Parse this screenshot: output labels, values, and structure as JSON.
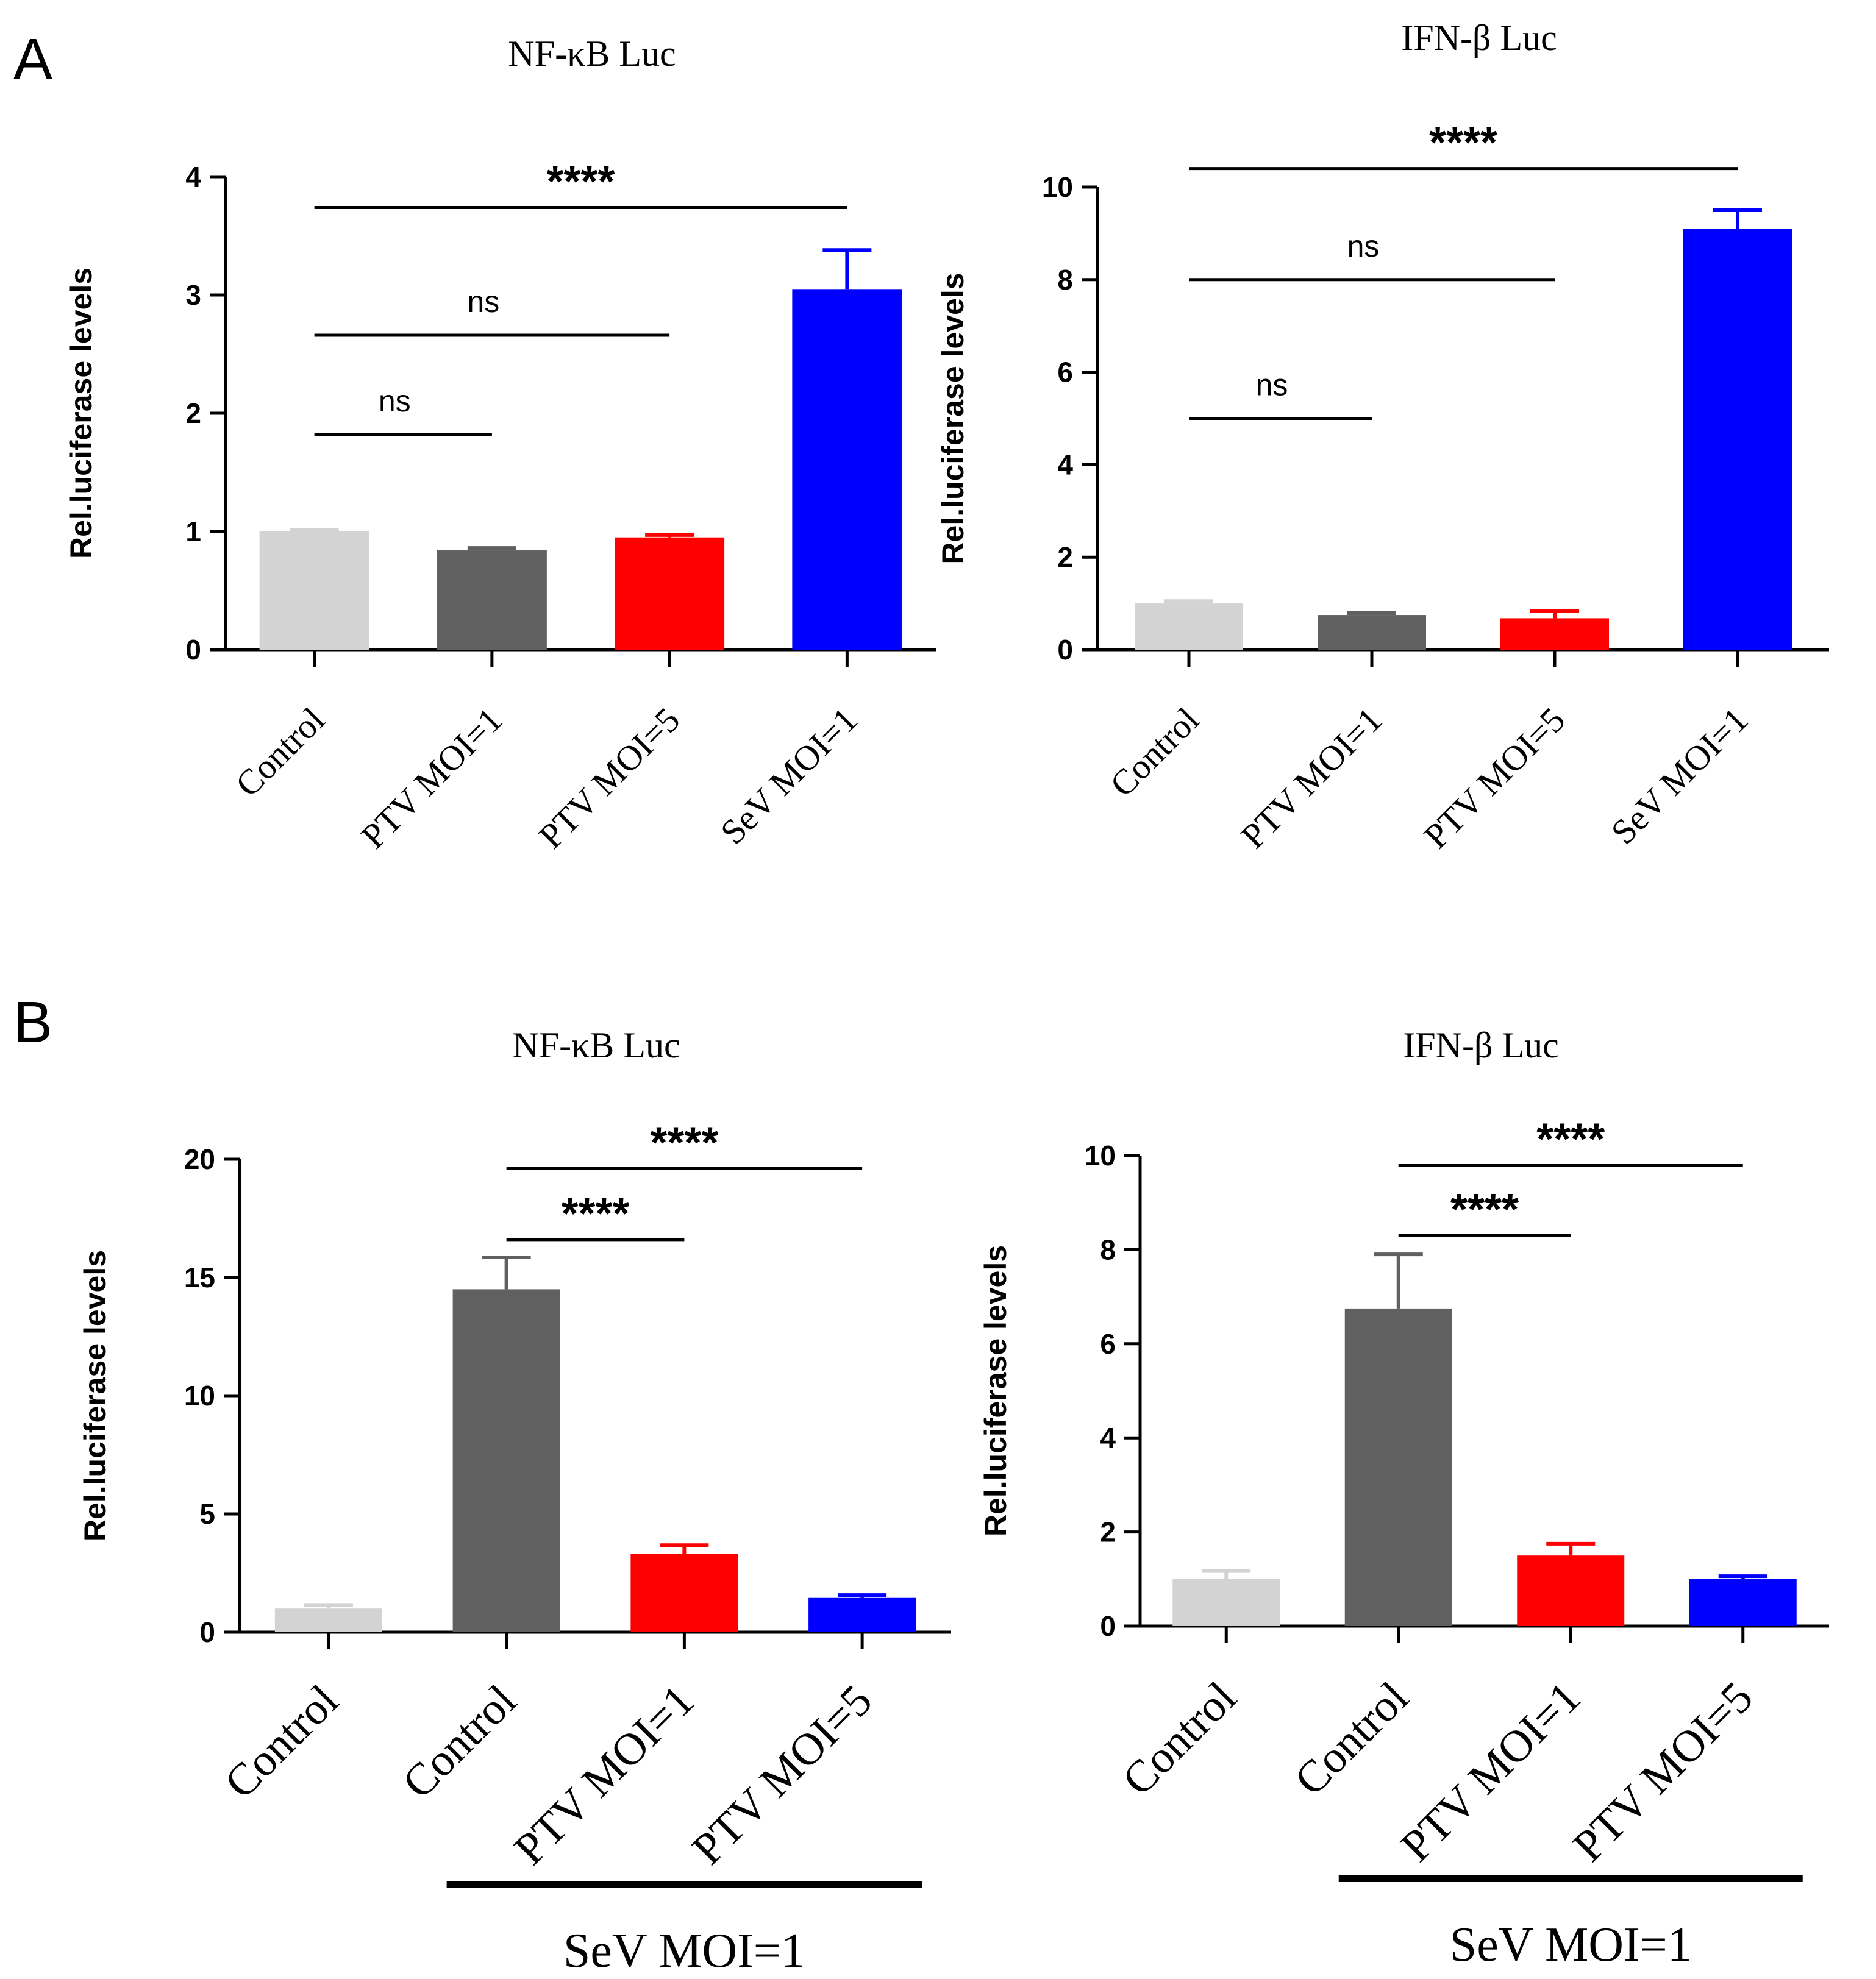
{
  "panels": [
    {
      "letter": "A"
    },
    {
      "letter": "B"
    }
  ],
  "colors": {
    "light_gray": "#d3d3d3",
    "dark_gray": "#606060",
    "red": "#ff0000",
    "blue": "#0000ff",
    "axis": "#000000"
  },
  "chart_data": [
    {
      "panel": "A",
      "type": "bar",
      "title": "NF-κB Luc",
      "ylabel": "Rel.luciferase levels",
      "xlabel": "",
      "categories": [
        "Control",
        "PTV MOI=1",
        "PTV MOI=5",
        "SeV MOI=1"
      ],
      "values": [
        1.0,
        0.84,
        0.95,
        3.05
      ],
      "errors": [
        0.01,
        0.02,
        0.02,
        0.33
      ],
      "bar_colors": [
        "#d3d3d3",
        "#606060",
        "#ff0000",
        "#0000ff"
      ],
      "ylim": [
        0,
        4
      ],
      "yticks": [
        0,
        1,
        2,
        3,
        4
      ],
      "comparisons": [
        {
          "from": 0,
          "to": 1,
          "label": "ns",
          "y": 1.82
        },
        {
          "from": 0,
          "to": 2,
          "label": "ns",
          "y": 2.66
        },
        {
          "from": 0,
          "to": 3,
          "label": "****",
          "y": 3.74
        }
      ]
    },
    {
      "panel": "A",
      "type": "bar",
      "title": "IFN-β Luc",
      "ylabel": "Rel.luciferase levels",
      "xlabel": "",
      "categories": [
        "Control",
        "PTV MOI=1",
        "PTV MOI=5",
        "SeV MOI=1"
      ],
      "values": [
        1.0,
        0.75,
        0.68,
        9.1
      ],
      "errors": [
        0.05,
        0.04,
        0.15,
        0.4
      ],
      "bar_colors": [
        "#d3d3d3",
        "#606060",
        "#ff0000",
        "#0000ff"
      ],
      "ylim": [
        0,
        10
      ],
      "yticks": [
        0,
        2,
        4,
        6,
        8,
        10
      ],
      "comparisons": [
        {
          "from": 0,
          "to": 1,
          "label": "ns",
          "y": 5.0
        },
        {
          "from": 0,
          "to": 2,
          "label": "ns",
          "y": 8.0
        },
        {
          "from": 0,
          "to": 3,
          "label": "****",
          "y": 10.4
        }
      ]
    },
    {
      "panel": "B",
      "type": "bar",
      "title": "NF-κB Luc",
      "ylabel": "Rel.luciferase levels",
      "xlabel": "",
      "categories": [
        "Control",
        "Control",
        "PTV MOI=1",
        "PTV MOI=5"
      ],
      "values": [
        1.0,
        14.5,
        3.3,
        1.45
      ],
      "errors": [
        0.15,
        1.35,
        0.38,
        0.12
      ],
      "bar_colors": [
        "#d3d3d3",
        "#606060",
        "#ff0000",
        "#0000ff"
      ],
      "ylim": [
        0,
        20
      ],
      "yticks": [
        0,
        5,
        10,
        15,
        20
      ],
      "comparisons": [
        {
          "from": 1,
          "to": 2,
          "label": "****",
          "y": 16.6
        },
        {
          "from": 1,
          "to": 3,
          "label": "****",
          "y": 19.6
        }
      ],
      "group": {
        "label": "SeV MOI=1",
        "from": 1,
        "to": 3
      }
    },
    {
      "panel": "B",
      "type": "bar",
      "title": "IFN-β Luc",
      "ylabel": "Rel.luciferase levels",
      "xlabel": "",
      "categories": [
        "Control",
        "Control",
        "PTV MOI=1",
        "PTV MOI=5"
      ],
      "values": [
        1.0,
        6.75,
        1.5,
        1.0
      ],
      "errors": [
        0.17,
        1.15,
        0.25,
        0.06
      ],
      "bar_colors": [
        "#d3d3d3",
        "#606060",
        "#ff0000",
        "#0000ff"
      ],
      "ylim": [
        0,
        10
      ],
      "yticks": [
        0,
        2,
        4,
        6,
        8,
        10
      ],
      "comparisons": [
        {
          "from": 1,
          "to": 2,
          "label": "****",
          "y": 8.3
        },
        {
          "from": 1,
          "to": 3,
          "label": "****",
          "y": 9.8
        }
      ],
      "group": {
        "label": "SeV MOI=1",
        "from": 1,
        "to": 3
      }
    }
  ]
}
